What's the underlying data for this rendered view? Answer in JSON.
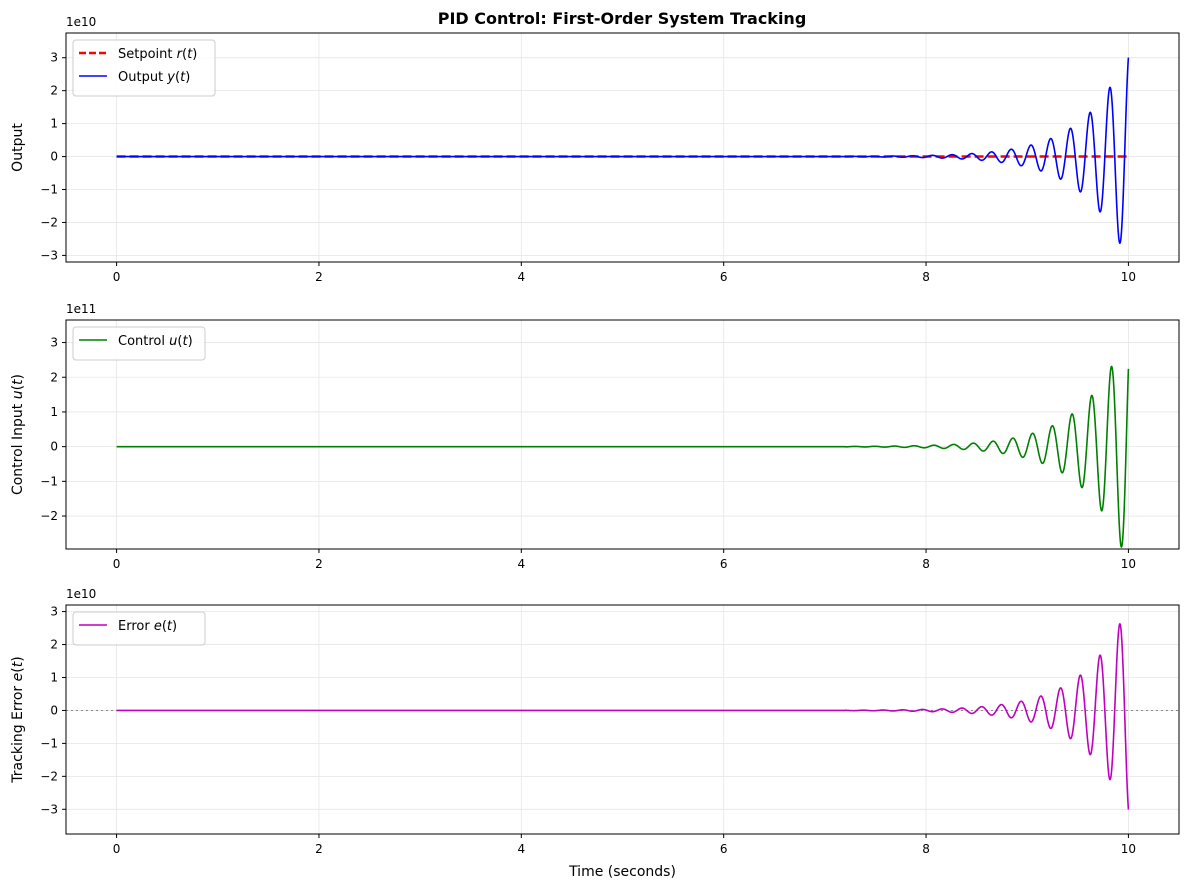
{
  "figure_title": "PID Control: First-Order System Tracking",
  "chart_data": [
    {
      "type": "line",
      "ylabel": "Output",
      "xlabel": "",
      "offset_label": "1e10",
      "scale": 10000000000.0,
      "xlim": [
        -0.5,
        10.5
      ],
      "ylim": [
        -32000000000.0,
        37500000000.0
      ],
      "xticks": [
        0,
        2,
        4,
        6,
        8,
        10
      ],
      "xtick_labels": [
        "0",
        "2",
        "4",
        "6",
        "8",
        "10"
      ],
      "yticks": [
        -30000000000.0,
        -20000000000.0,
        -10000000000.0,
        0,
        10000000000.0,
        20000000000.0,
        30000000000.0
      ],
      "ytick_labels": [
        "−3",
        "−2",
        "−1",
        "0",
        "1",
        "2",
        "3"
      ],
      "grid": true,
      "legend": "top-left",
      "series": [
        {
          "name": "Setpoint r(t)",
          "legend_label": "Setpoint r(t)",
          "color": "#ff0000",
          "style": "dashed",
          "width": 2.5,
          "points": [
            [
              0,
              0
            ],
            [
              10,
              0
            ]
          ]
        },
        {
          "name": "Output y(t)",
          "legend_label": "Output y(t)",
          "color": "#0000ff",
          "style": "solid",
          "width": 1.6,
          "oscillation": {
            "x_start": 7.2,
            "x_end": 10,
            "period": 0.195,
            "amp_end": 32000000000.0,
            "growth": 2.3,
            "phase": 1.22
          }
        }
      ]
    },
    {
      "type": "line",
      "ylabel": "Control Input u(t)",
      "xlabel": "",
      "offset_label": "1e11",
      "scale": 100000000000.0,
      "xlim": [
        -0.5,
        10.5
      ],
      "ylim": [
        -295000000000.0,
        365000000000.0
      ],
      "xticks": [
        0,
        2,
        4,
        6,
        8,
        10
      ],
      "xtick_labels": [
        "0",
        "2",
        "4",
        "6",
        "8",
        "10"
      ],
      "yticks": [
        -200000000000.0,
        -100000000000.0,
        0,
        100000000000.0,
        200000000000.0,
        300000000000.0
      ],
      "ytick_labels": [
        "−2",
        "−1",
        "0",
        "1",
        "2",
        "3"
      ],
      "grid": true,
      "legend": "top-left",
      "series": [
        {
          "name": "Control u(t)",
          "legend_label": "Control u(t)",
          "color": "#008000",
          "style": "solid",
          "width": 1.6,
          "oscillation": {
            "x_start": 7.2,
            "x_end": 10,
            "period": 0.195,
            "amp_end": 340000000000.0,
            "growth": 2.3,
            "phase": 0.72
          }
        }
      ]
    },
    {
      "type": "line",
      "ylabel": "Tracking Error e(t)",
      "xlabel": "Time (seconds)",
      "offset_label": "1e10",
      "scale": 10000000000.0,
      "xlim": [
        -0.5,
        10.5
      ],
      "ylim": [
        -37500000000.0,
        32000000000.0
      ],
      "xticks": [
        0,
        2,
        4,
        6,
        8,
        10
      ],
      "xtick_labels": [
        "0",
        "2",
        "4",
        "6",
        "8",
        "10"
      ],
      "yticks": [
        -30000000000.0,
        -20000000000.0,
        -10000000000.0,
        0,
        10000000000.0,
        20000000000.0,
        30000000000.0
      ],
      "ytick_labels": [
        "−3",
        "−2",
        "−1",
        "0",
        "1",
        "2",
        "3"
      ],
      "grid": true,
      "legend": "top-left",
      "zero_line": true,
      "series": [
        {
          "name": "Error e(t)",
          "legend_label": "Error e(t)",
          "color": "#bf00bf",
          "style": "solid",
          "width": 1.6,
          "oscillation": {
            "x_start": 7.2,
            "x_end": 10,
            "period": 0.195,
            "amp_end": 32000000000.0,
            "growth": 2.3,
            "phase": -1.92
          }
        }
      ]
    }
  ]
}
